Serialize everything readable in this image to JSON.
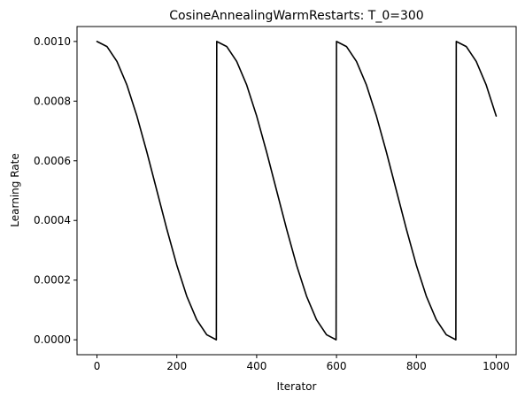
{
  "chart_data": {
    "type": "line",
    "title": "CosineAnnealingWarmRestarts: T_0=300",
    "xlabel": "Iterator",
    "ylabel": "Learning Rate",
    "xlim": [
      -50,
      1050
    ],
    "ylim": [
      -5e-05,
      0.00105
    ],
    "xticks": [
      0,
      200,
      400,
      600,
      800,
      1000
    ],
    "xtick_labels": [
      "0",
      "200",
      "400",
      "600",
      "800",
      "1000"
    ],
    "yticks": [
      0.0,
      0.0002,
      0.0004,
      0.0006,
      0.0008,
      0.001
    ],
    "ytick_labels": [
      "0.0000",
      "0.0002",
      "0.0004",
      "0.0006",
      "0.0008",
      "0.0010"
    ],
    "grid": false,
    "legend": "none",
    "series": [
      {
        "color": "#000000",
        "x": [
          0,
          25,
          50,
          75,
          100,
          125,
          150,
          175,
          200,
          225,
          250,
          275,
          299,
          300,
          325,
          350,
          375,
          400,
          425,
          450,
          475,
          500,
          525,
          550,
          575,
          599,
          600,
          625,
          650,
          675,
          700,
          725,
          750,
          775,
          800,
          825,
          850,
          875,
          899,
          900,
          925,
          950,
          975,
          1000
        ],
        "y": [
          0.001,
          0.000983,
          0.000933,
          0.000854,
          0.00075,
          0.000629,
          0.0005,
          0.000371,
          0.00025,
          0.000146,
          6.7e-05,
          1.7e-05,
          0.0,
          0.001,
          0.000983,
          0.000933,
          0.000854,
          0.00075,
          0.000629,
          0.0005,
          0.000371,
          0.00025,
          0.000146,
          6.7e-05,
          1.7e-05,
          0.0,
          0.001,
          0.000983,
          0.000933,
          0.000854,
          0.00075,
          0.000629,
          0.0005,
          0.000371,
          0.00025,
          0.000146,
          6.7e-05,
          1.7e-05,
          0.0,
          0.001,
          0.000983,
          0.000933,
          0.000854,
          0.00075
        ]
      }
    ]
  }
}
